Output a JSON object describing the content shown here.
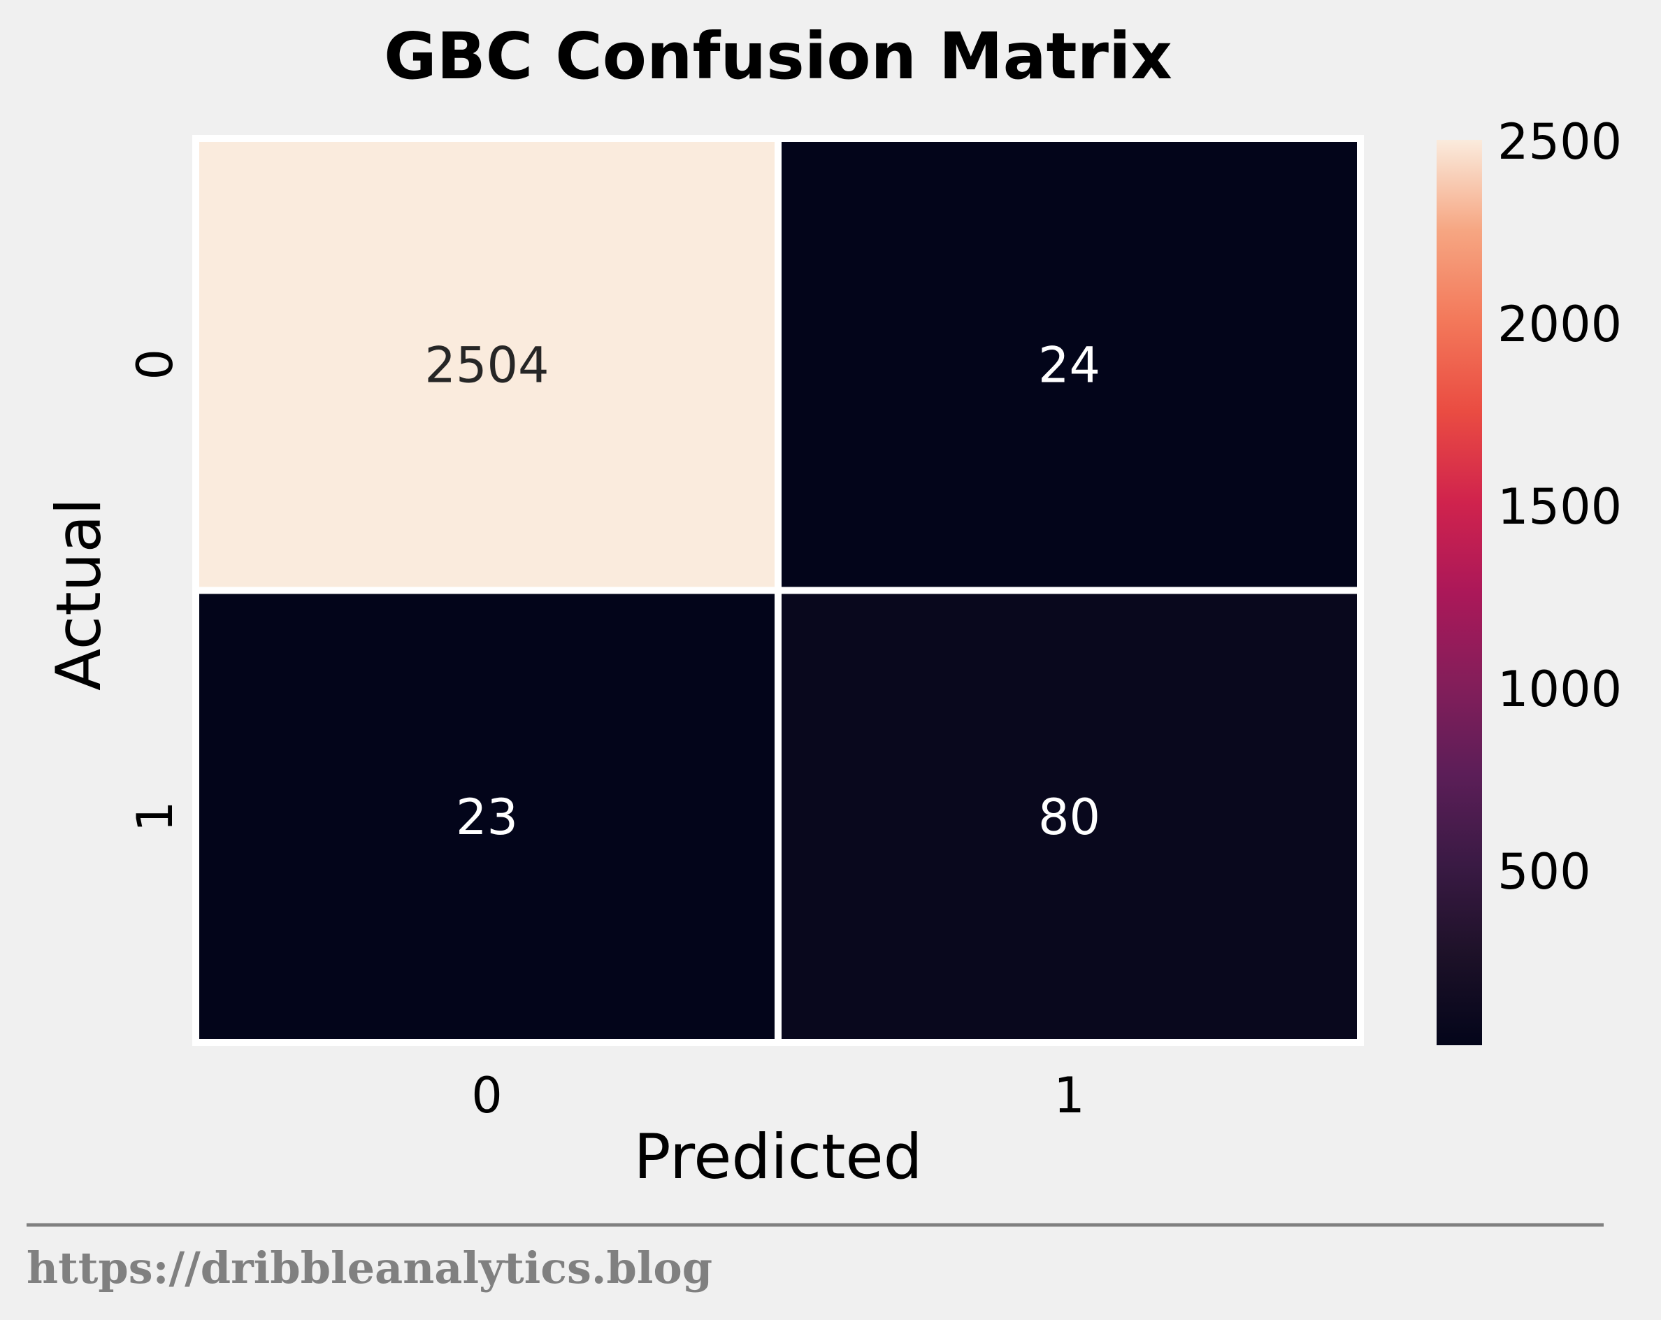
{
  "chart_data": {
    "type": "heatmap",
    "title": "GBC Confusion Matrix",
    "xlabel": "Predicted",
    "ylabel": "Actual",
    "x_categories": [
      "0",
      "1"
    ],
    "y_categories": [
      "0",
      "1"
    ],
    "values": [
      [
        2504,
        24
      ],
      [
        23,
        80
      ]
    ],
    "colorbar": {
      "min": 23,
      "max": 2504,
      "ticks": [
        500,
        1000,
        1500,
        2000,
        2500
      ],
      "tick_labels": [
        "500",
        "1000",
        "1500",
        "2000",
        "2500"
      ],
      "colormap": "rocket"
    },
    "grid": false,
    "legend": "colorbar-right"
  },
  "source": {
    "text": "https://dribbleanalytics.blog"
  },
  "colors": {
    "background": "#f0f0f0",
    "cell_border": "#ffffff",
    "footer_rule": "#808080"
  }
}
